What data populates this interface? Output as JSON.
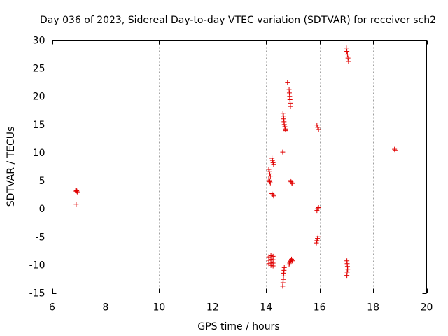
{
  "chart_data": {
    "type": "scatter",
    "title": "Day 036 of 2023, Sidereal Day-to-day VTEC variation (SDTVAR) for receiver sch2",
    "xlabel": "GPS time / hours",
    "ylabel": "SDTVAR / TECUs",
    "xlim": [
      6,
      20
    ],
    "ylim": [
      -15,
      30
    ],
    "xticks": [
      6,
      8,
      10,
      12,
      14,
      16,
      18,
      20
    ],
    "yticks": [
      -15,
      -10,
      -5,
      0,
      5,
      10,
      15,
      20,
      25,
      30
    ],
    "grid": true,
    "marker": "+",
    "color": "#e00000",
    "series": [
      {
        "name": "SDTVAR",
        "points": [
          [
            6.88,
            3.3
          ],
          [
            6.9,
            3.1
          ],
          [
            6.92,
            3.2
          ],
          [
            6.94,
            3.0
          ],
          [
            6.9,
            0.8
          ],
          [
            14.1,
            7.0
          ],
          [
            14.12,
            6.6
          ],
          [
            14.14,
            6.2
          ],
          [
            14.16,
            5.8
          ],
          [
            14.1,
            5.3
          ],
          [
            14.12,
            5.0
          ],
          [
            14.14,
            4.8
          ],
          [
            14.16,
            4.6
          ],
          [
            14.22,
            9.0
          ],
          [
            14.24,
            8.6
          ],
          [
            14.26,
            8.2
          ],
          [
            14.28,
            7.9
          ],
          [
            14.22,
            2.7
          ],
          [
            14.25,
            2.5
          ],
          [
            14.28,
            2.3
          ],
          [
            14.1,
            -8.6
          ],
          [
            14.1,
            -9.2
          ],
          [
            14.1,
            -9.8
          ],
          [
            14.18,
            -8.4
          ],
          [
            14.18,
            -9.0
          ],
          [
            14.18,
            -9.6
          ],
          [
            14.18,
            -10.1
          ],
          [
            14.26,
            -8.5
          ],
          [
            14.26,
            -9.1
          ],
          [
            14.26,
            -9.7
          ],
          [
            14.26,
            -10.2
          ],
          [
            14.62,
            10.1
          ],
          [
            14.63,
            17.0
          ],
          [
            14.65,
            16.5
          ],
          [
            14.66,
            16.0
          ],
          [
            14.67,
            15.5
          ],
          [
            14.68,
            15.0
          ],
          [
            14.7,
            14.6
          ],
          [
            14.72,
            14.2
          ],
          [
            14.74,
            13.9
          ],
          [
            14.8,
            22.5
          ],
          [
            14.86,
            21.2
          ],
          [
            14.87,
            20.6
          ],
          [
            14.88,
            20.0
          ],
          [
            14.89,
            19.4
          ],
          [
            14.9,
            18.8
          ],
          [
            14.91,
            18.2
          ],
          [
            14.9,
            5.0
          ],
          [
            14.93,
            4.8
          ],
          [
            14.96,
            4.6
          ],
          [
            14.99,
            4.5
          ],
          [
            14.62,
            -13.8
          ],
          [
            14.63,
            -13.2
          ],
          [
            14.64,
            -12.6
          ],
          [
            14.65,
            -12.0
          ],
          [
            14.66,
            -11.5
          ],
          [
            14.67,
            -11.0
          ],
          [
            14.68,
            -10.5
          ],
          [
            14.86,
            -10.0
          ],
          [
            14.88,
            -9.7
          ],
          [
            14.9,
            -9.4
          ],
          [
            14.92,
            -9.2
          ],
          [
            14.95,
            -9.0
          ],
          [
            14.98,
            -9.3
          ],
          [
            15.9,
            14.9
          ],
          [
            15.93,
            14.5
          ],
          [
            15.96,
            14.1
          ],
          [
            15.9,
            -0.3
          ],
          [
            15.93,
            0.0
          ],
          [
            15.96,
            0.2
          ],
          [
            15.88,
            -6.1
          ],
          [
            15.9,
            -5.7
          ],
          [
            15.92,
            -5.3
          ],
          [
            15.94,
            -5.0
          ],
          [
            17.0,
            28.6
          ],
          [
            17.02,
            28.0
          ],
          [
            17.04,
            27.4
          ],
          [
            17.06,
            26.8
          ],
          [
            17.08,
            26.2
          ],
          [
            17.02,
            -9.3
          ],
          [
            17.03,
            -9.8
          ],
          [
            17.04,
            -10.3
          ],
          [
            17.05,
            -10.8
          ],
          [
            17.03,
            -11.3
          ],
          [
            17.02,
            -11.9
          ],
          [
            18.8,
            10.6
          ],
          [
            18.82,
            10.4
          ]
        ]
      }
    ]
  }
}
